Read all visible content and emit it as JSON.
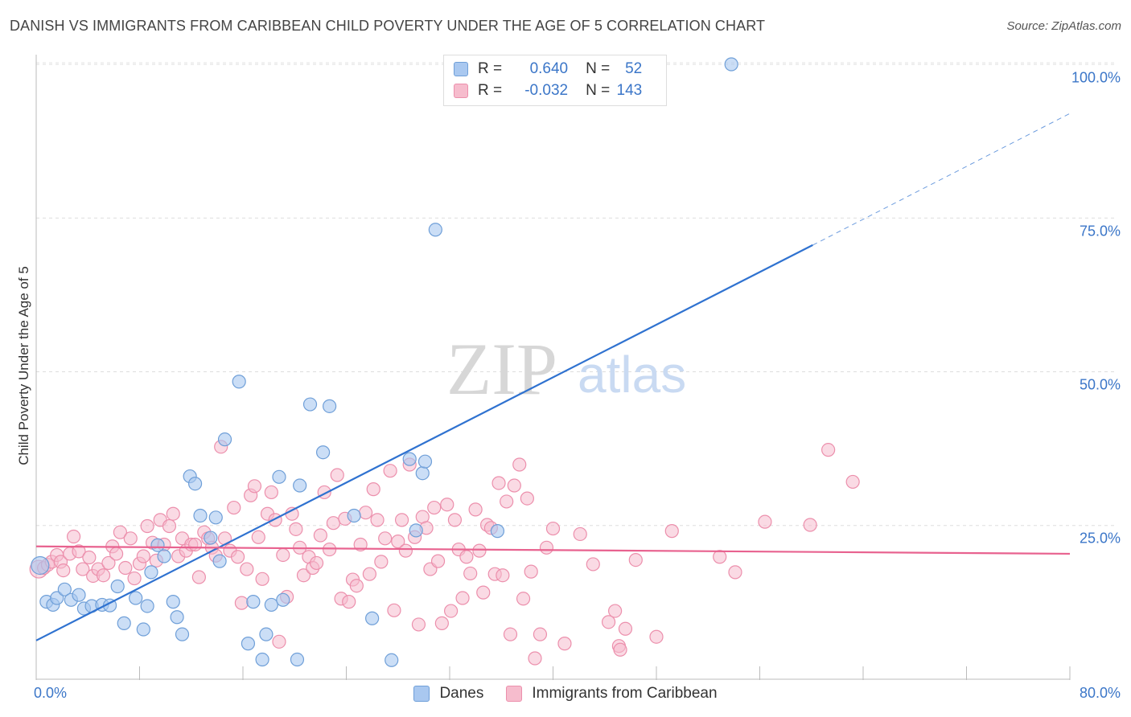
{
  "title": "DANISH VS IMMIGRANTS FROM CARIBBEAN CHILD POVERTY UNDER THE AGE OF 5 CORRELATION CHART",
  "source": "Source: ZipAtlas.com",
  "watermark": {
    "zip": "ZIP",
    "atlas": "atlas"
  },
  "legend": {
    "danes": {
      "r_label": "R = ",
      "r_value": "0.640",
      "n_label": "N = ",
      "n_value": "52"
    },
    "caribbean": {
      "r_label": "R = ",
      "r_value": "-0.032",
      "n_label": "N = ",
      "n_value": "143"
    }
  },
  "colors": {
    "danes_fill": "#a9c8f0",
    "danes_stroke": "#6f9fd8",
    "danes_line": "#2f72d0",
    "carib_fill": "#f6bccd",
    "carib_stroke": "#ec8fac",
    "carib_line": "#e8628f",
    "tick_text": "#3b76c8",
    "grid": "#dddddd"
  },
  "chart_data": {
    "type": "scatter",
    "title": "DANISH VS IMMIGRANTS FROM CARIBBEAN CHILD POVERTY UNDER THE AGE OF 5 CORRELATION CHART",
    "xlabel": "",
    "ylabel": "Child Poverty Under the Age of 5",
    "xlim": [
      0,
      80
    ],
    "ylim": [
      0,
      100
    ],
    "x_tick_labels": [
      "0.0%",
      "80.0%"
    ],
    "y_tick_labels": [
      "100.0%",
      "75.0%",
      "50.0%",
      "25.0%"
    ],
    "y_ticks": [
      100,
      75,
      50,
      25
    ],
    "grid": true,
    "legend_position": "bottom",
    "series": [
      {
        "name": "Danes",
        "points": [
          [
            0.3,
            18.5
          ],
          [
            0.8,
            12.6
          ],
          [
            1.3,
            12.1
          ],
          [
            1.6,
            13.2
          ],
          [
            2.2,
            14.6
          ],
          [
            2.7,
            12.9
          ],
          [
            3.3,
            13.7
          ],
          [
            3.7,
            11.5
          ],
          [
            4.3,
            11.9
          ],
          [
            5.1,
            12.1
          ],
          [
            5.7,
            12.0
          ],
          [
            6.3,
            15.1
          ],
          [
            6.8,
            9.1
          ],
          [
            7.7,
            13.2
          ],
          [
            8.3,
            8.1
          ],
          [
            8.6,
            11.9
          ],
          [
            8.9,
            17.4
          ],
          [
            9.4,
            21.8
          ],
          [
            9.9,
            20.0
          ],
          [
            10.6,
            12.6
          ],
          [
            10.9,
            10.1
          ],
          [
            11.3,
            7.3
          ],
          [
            11.9,
            33.0
          ],
          [
            12.3,
            31.8
          ],
          [
            12.7,
            26.6
          ],
          [
            13.5,
            23.0
          ],
          [
            13.9,
            26.3
          ],
          [
            14.2,
            19.2
          ],
          [
            14.6,
            39.0
          ],
          [
            15.7,
            48.4
          ],
          [
            16.4,
            5.8
          ],
          [
            16.8,
            12.6
          ],
          [
            17.5,
            3.2
          ],
          [
            17.8,
            7.3
          ],
          [
            18.2,
            12.1
          ],
          [
            18.8,
            32.9
          ],
          [
            19.1,
            12.9
          ],
          [
            20.2,
            3.2
          ],
          [
            20.4,
            31.5
          ],
          [
            21.2,
            44.7
          ],
          [
            22.2,
            36.9
          ],
          [
            22.7,
            44.4
          ],
          [
            24.6,
            26.6
          ],
          [
            26.0,
            9.9
          ],
          [
            27.5,
            3.1
          ],
          [
            28.9,
            35.8
          ],
          [
            29.9,
            33.5
          ],
          [
            30.1,
            35.4
          ],
          [
            30.9,
            73.1
          ],
          [
            35.7,
            24.1
          ],
          [
            53.8,
            100.0
          ],
          [
            29.4,
            24.2
          ]
        ]
      },
      {
        "name": "Immigrants from Caribbean",
        "points": [
          [
            0.2,
            17.9
          ],
          [
            0.6,
            18.1
          ],
          [
            0.9,
            18.6
          ],
          [
            1.2,
            19.1
          ],
          [
            1.6,
            20.2
          ],
          [
            1.9,
            19.1
          ],
          [
            2.1,
            17.7
          ],
          [
            2.6,
            20.4
          ],
          [
            2.9,
            23.2
          ],
          [
            3.3,
            20.8
          ],
          [
            3.6,
            17.9
          ],
          [
            4.1,
            19.8
          ],
          [
            4.4,
            16.8
          ],
          [
            4.8,
            17.9
          ],
          [
            5.2,
            16.9
          ],
          [
            5.6,
            18.9
          ],
          [
            5.9,
            21.6
          ],
          [
            6.2,
            20.4
          ],
          [
            6.5,
            23.9
          ],
          [
            6.9,
            18.1
          ],
          [
            7.3,
            22.9
          ],
          [
            7.6,
            16.4
          ],
          [
            8.0,
            18.8
          ],
          [
            8.3,
            20.0
          ],
          [
            8.6,
            24.9
          ],
          [
            9.0,
            22.2
          ],
          [
            9.3,
            19.3
          ],
          [
            9.6,
            25.9
          ],
          [
            9.9,
            21.9
          ],
          [
            10.3,
            24.9
          ],
          [
            10.6,
            26.9
          ],
          [
            11.0,
            20.0
          ],
          [
            11.3,
            22.9
          ],
          [
            11.6,
            20.9
          ],
          [
            12.0,
            21.9
          ],
          [
            12.3,
            21.9
          ],
          [
            12.6,
            16.6
          ],
          [
            13.0,
            23.9
          ],
          [
            13.3,
            22.9
          ],
          [
            13.6,
            21.4
          ],
          [
            13.9,
            20.1
          ],
          [
            14.3,
            37.8
          ],
          [
            14.6,
            22.9
          ],
          [
            15.0,
            20.9
          ],
          [
            15.3,
            27.9
          ],
          [
            15.6,
            19.9
          ],
          [
            15.9,
            12.4
          ],
          [
            16.3,
            17.9
          ],
          [
            16.6,
            29.9
          ],
          [
            16.9,
            31.4
          ],
          [
            17.2,
            23.1
          ],
          [
            17.5,
            16.3
          ],
          [
            17.9,
            26.9
          ],
          [
            18.2,
            30.4
          ],
          [
            18.5,
            25.9
          ],
          [
            18.8,
            6.1
          ],
          [
            19.1,
            20.2
          ],
          [
            19.4,
            13.4
          ],
          [
            19.8,
            26.9
          ],
          [
            20.1,
            24.4
          ],
          [
            20.4,
            21.4
          ],
          [
            20.7,
            16.9
          ],
          [
            21.1,
            19.9
          ],
          [
            21.4,
            18.1
          ],
          [
            21.7,
            18.9
          ],
          [
            22.0,
            23.4
          ],
          [
            22.3,
            30.4
          ],
          [
            22.7,
            21.1
          ],
          [
            23.0,
            25.4
          ],
          [
            23.3,
            33.2
          ],
          [
            23.6,
            13.1
          ],
          [
            23.9,
            26.1
          ],
          [
            24.2,
            12.6
          ],
          [
            24.5,
            16.2
          ],
          [
            24.8,
            15.2
          ],
          [
            25.1,
            21.9
          ],
          [
            25.5,
            27.1
          ],
          [
            25.8,
            17.1
          ],
          [
            26.1,
            30.9
          ],
          [
            26.4,
            25.9
          ],
          [
            26.7,
            19.1
          ],
          [
            27.0,
            22.9
          ],
          [
            27.4,
            33.9
          ],
          [
            27.7,
            11.2
          ],
          [
            28.0,
            22.4
          ],
          [
            28.3,
            25.9
          ],
          [
            28.6,
            20.9
          ],
          [
            28.9,
            34.9
          ],
          [
            29.3,
            23.1
          ],
          [
            29.6,
            8.9
          ],
          [
            29.9,
            26.4
          ],
          [
            30.2,
            24.6
          ],
          [
            30.5,
            17.9
          ],
          [
            30.8,
            27.9
          ],
          [
            31.1,
            19.2
          ],
          [
            31.4,
            9.1
          ],
          [
            31.8,
            28.4
          ],
          [
            32.1,
            11.1
          ],
          [
            32.4,
            25.9
          ],
          [
            32.7,
            21.1
          ],
          [
            33.0,
            13.2
          ],
          [
            33.3,
            19.9
          ],
          [
            33.6,
            17.2
          ],
          [
            34.0,
            27.6
          ],
          [
            34.3,
            20.9
          ],
          [
            34.6,
            14.1
          ],
          [
            34.9,
            25.1
          ],
          [
            35.2,
            24.6
          ],
          [
            35.5,
            17.1
          ],
          [
            35.8,
            31.9
          ],
          [
            36.1,
            16.9
          ],
          [
            36.4,
            28.9
          ],
          [
            36.7,
            7.3
          ],
          [
            37.0,
            31.5
          ],
          [
            37.4,
            34.9
          ],
          [
            37.7,
            13.1
          ],
          [
            38.0,
            29.4
          ],
          [
            38.3,
            17.5
          ],
          [
            38.6,
            3.4
          ],
          [
            39.0,
            7.3
          ],
          [
            39.5,
            21.4
          ],
          [
            40.0,
            24.5
          ],
          [
            40.9,
            5.8
          ],
          [
            42.1,
            23.6
          ],
          [
            43.1,
            18.7
          ],
          [
            44.3,
            9.3
          ],
          [
            44.8,
            11.1
          ],
          [
            45.1,
            5.4
          ],
          [
            45.6,
            8.2
          ],
          [
            46.4,
            19.4
          ],
          [
            48.0,
            6.9
          ],
          [
            49.2,
            24.1
          ],
          [
            52.9,
            19.9
          ],
          [
            54.1,
            17.4
          ],
          [
            56.4,
            25.6
          ],
          [
            59.9,
            25.1
          ],
          [
            61.3,
            37.3
          ],
          [
            63.2,
            32.1
          ],
          [
            45.2,
            4.8
          ]
        ]
      }
    ],
    "trend_lines": [
      {
        "series": "Danes",
        "start": [
          0,
          6.3
        ],
        "solid_end": [
          60.1,
          70.6
        ],
        "dashed_end": [
          80,
          92.0
        ]
      },
      {
        "series": "Immigrants from Caribbean",
        "start": [
          0,
          21.6
        ],
        "end": [
          80,
          20.4
        ]
      }
    ]
  },
  "bottom_legend": {
    "danes": "Danes",
    "caribbean": "Immigrants from Caribbean"
  }
}
